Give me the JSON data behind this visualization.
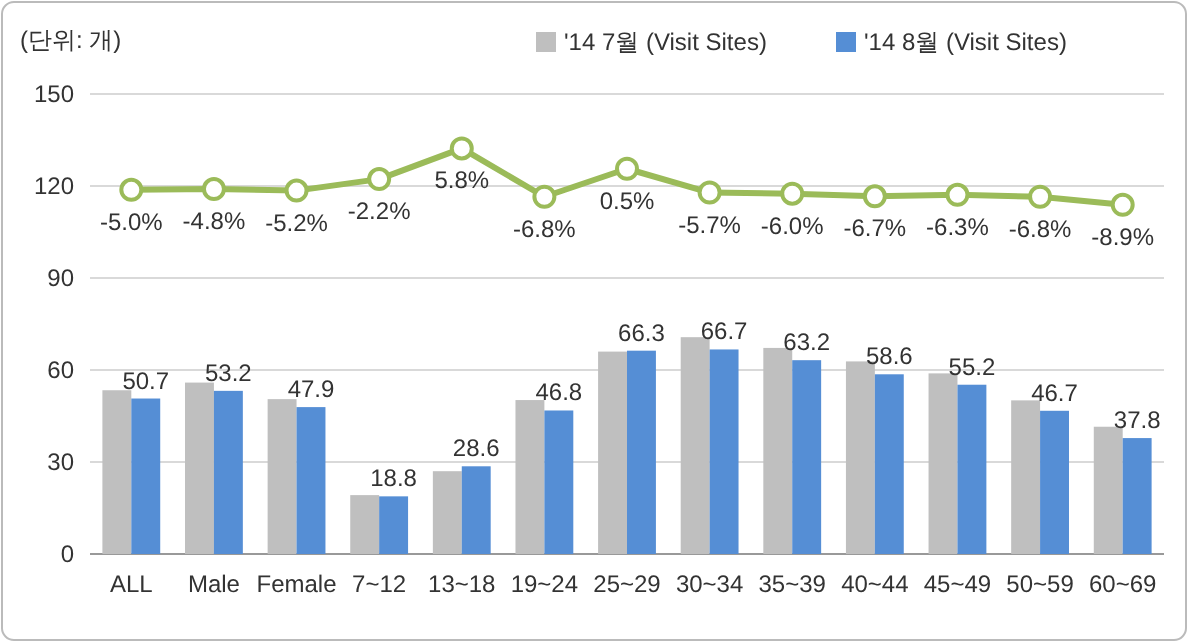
{
  "chart_data": {
    "type": "bar",
    "ylabel": "(단위: 개)",
    "categories": [
      "ALL",
      "Male",
      "Female",
      "7~12",
      "13~18",
      "19~24",
      "25~29",
      "30~34",
      "35~39",
      "40~44",
      "45~49",
      "50~59",
      "60~69"
    ],
    "ylim": [
      0,
      150
    ],
    "y2lim": [
      -100,
      20
    ],
    "tick_labels": "xy",
    "yticks": [
      0,
      30,
      60,
      90,
      120,
      150
    ],
    "grid": "y",
    "legend": "top right",
    "series": [
      {
        "name": "'14 7월 (Visit Sites)",
        "color": "#bfbfbf",
        "values": [
          53.4,
          55.9,
          50.5,
          19.2,
          27.0,
          50.2,
          66.0,
          70.7,
          67.2,
          62.8,
          58.9,
          50.1,
          41.5
        ]
      },
      {
        "name": "'14 8월 (Visit Sites)",
        "color": "#558ed5",
        "values": [
          50.7,
          53.2,
          47.9,
          18.8,
          28.6,
          46.8,
          66.3,
          66.7,
          63.2,
          58.6,
          55.2,
          46.7,
          37.8
        ],
        "value_labels": [
          "50.7",
          "53.2",
          "47.9",
          "18.8",
          "28.6",
          "46.8",
          "66.3",
          "66.7",
          "63.2",
          "58.6",
          "55.2",
          "46.7",
          "37.8"
        ]
      },
      {
        "type": "line",
        "axis": "y2",
        "color": "#9bbb59",
        "marker": "circle",
        "line_style": "solid",
        "values": [
          -5.0,
          -4.8,
          -5.2,
          -2.2,
          5.8,
          -6.8,
          0.5,
          -5.7,
          -6.0,
          -6.7,
          -6.3,
          -6.8,
          -8.9
        ],
        "value_labels": [
          "-5.0%",
          "-4.8%",
          "-5.2%",
          "-2.2%",
          "5.8%",
          "-6.8%",
          "0.5%",
          "-5.7%",
          "-6.0%",
          "-6.7%",
          "-6.3%",
          "-6.8%",
          "-8.9%"
        ]
      }
    ]
  }
}
